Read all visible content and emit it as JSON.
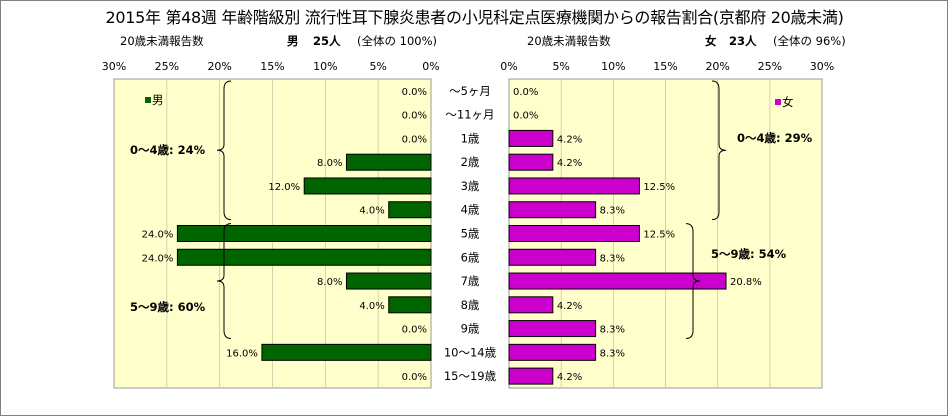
{
  "title": "2015年 第48週 年齢階級別 流行性耳下腺炎患者の小児科定点医療機関からの報告割合(京都府 20歳未満)",
  "header": {
    "left_caption": "20歳未満報告数",
    "left_gender": "男",
    "left_count": "25人",
    "left_total": "(全体の 100%)",
    "right_caption": "20歳未満報告数",
    "right_gender": "女",
    "right_count": "23人",
    "right_total": "(全体の 96%)"
  },
  "chart_data": {
    "type": "bar",
    "orientation": "horizontal-butterfly",
    "categories": [
      "～5ヶ月",
      "～11ヶ月",
      "1歳",
      "2歳",
      "3歳",
      "4歳",
      "5歳",
      "6歳",
      "7歳",
      "8歳",
      "9歳",
      "10～14歳",
      "15～19歳"
    ],
    "series": [
      {
        "name": "男",
        "color": "#006400",
        "values": [
          0.0,
          0.0,
          0.0,
          8.0,
          12.0,
          4.0,
          24.0,
          24.0,
          8.0,
          4.0,
          0.0,
          16.0,
          0.0
        ],
        "labels": [
          "0.0%",
          "0.0%",
          "0.0%",
          "8.0%",
          "12.0%",
          "4.0%",
          "24.0%",
          "24.0%",
          "8.0%",
          "4.0%",
          "0.0%",
          "16.0%",
          "0.0%"
        ]
      },
      {
        "name": "女",
        "color": "#cc00cc",
        "values": [
          0.0,
          0.0,
          4.2,
          4.2,
          12.5,
          8.3,
          12.5,
          8.3,
          20.8,
          4.2,
          8.3,
          8.3,
          4.2
        ],
        "labels": [
          "0.0%",
          "0.0%",
          "4.2%",
          "4.2%",
          "12.5%",
          "8.3%",
          "12.5%",
          "8.3%",
          "20.8%",
          "4.2%",
          "8.3%",
          "8.3%",
          "4.2%"
        ]
      }
    ],
    "xlim": [
      0,
      30
    ],
    "ticks": [
      "0%",
      "5%",
      "10%",
      "15%",
      "20%",
      "25%",
      "30%"
    ],
    "legend": {
      "left": "男",
      "right": "女"
    },
    "annotations": {
      "male_0_4": "0～4歳: 24%",
      "male_5_9": "5～9歳: 60%",
      "female_0_4": "0～4歳: 29%",
      "female_5_9": "5～9歳: 54%"
    },
    "plot_background": "#ffffcc",
    "grid": true
  }
}
